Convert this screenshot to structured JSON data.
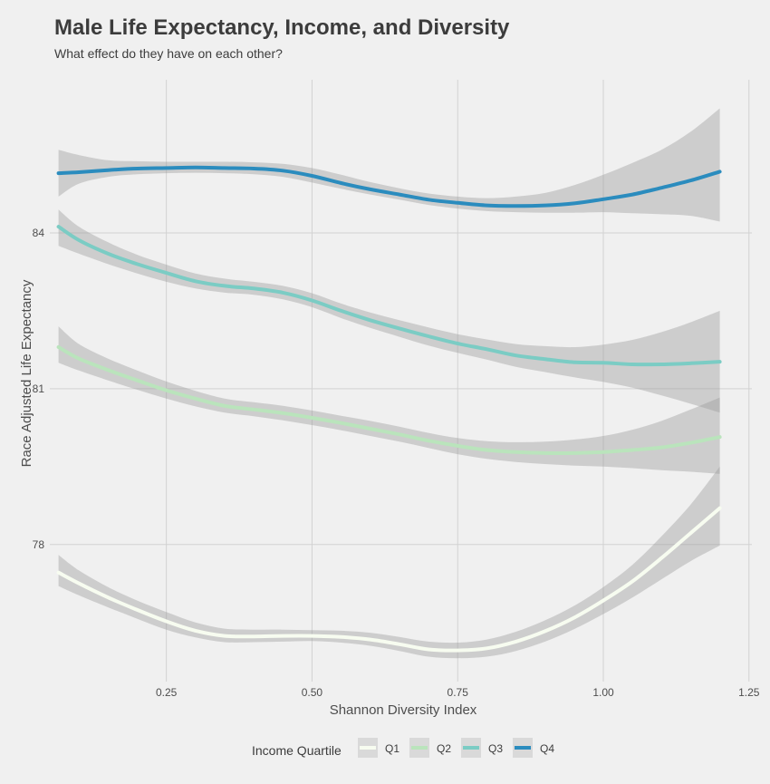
{
  "chart_data": {
    "type": "line",
    "title": "Male Life Expectancy, Income, and Diversity",
    "subtitle": "What effect do they have on each other?",
    "xlabel": "Shannon Diversity Index",
    "ylabel": "Race Adjusted Life Expectancy",
    "xlim": [
      0.05,
      1.255
    ],
    "ylim": [
      75.36,
      86.95
    ],
    "x_ticks": [
      0.25,
      0.5,
      0.75,
      1.0,
      1.25
    ],
    "x_tick_labels": [
      "0.25",
      "0.50",
      "0.75",
      "1.00",
      "1.25"
    ],
    "y_ticks": [
      78,
      81,
      84
    ],
    "y_tick_labels": [
      "78",
      "81",
      "84"
    ],
    "grid": true,
    "legend": {
      "title": "Income Quartile",
      "position": "bottom"
    },
    "series": [
      {
        "name": "Q1",
        "color": "#F7FCF0",
        "x": [
          0.065,
          0.1,
          0.15,
          0.2,
          0.25,
          0.3,
          0.35,
          0.4,
          0.45,
          0.5,
          0.55,
          0.6,
          0.65,
          0.7,
          0.75,
          0.8,
          0.85,
          0.9,
          0.95,
          1.0,
          1.05,
          1.1,
          1.15,
          1.2
        ],
        "y": [
          77.46,
          77.25,
          76.98,
          76.74,
          76.52,
          76.34,
          76.24,
          76.23,
          76.24,
          76.24,
          76.22,
          76.17,
          76.08,
          75.98,
          75.96,
          76.0,
          76.13,
          76.33,
          76.59,
          76.92,
          77.29,
          77.74,
          78.22,
          78.7
        ],
        "lower": [
          77.2,
          77.02,
          76.79,
          76.57,
          76.36,
          76.21,
          76.12,
          76.12,
          76.13,
          76.14,
          76.11,
          76.05,
          75.95,
          75.84,
          75.81,
          75.84,
          75.95,
          76.13,
          76.37,
          76.66,
          76.98,
          77.33,
          77.68,
          77.98
        ],
        "upper": [
          77.8,
          77.5,
          77.18,
          76.92,
          76.7,
          76.5,
          76.38,
          76.36,
          76.36,
          76.35,
          76.34,
          76.3,
          76.22,
          76.13,
          76.11,
          76.17,
          76.32,
          76.54,
          76.82,
          77.18,
          77.61,
          78.16,
          78.77,
          79.5
        ]
      },
      {
        "name": "Q2",
        "color": "#BAE4BC",
        "x": [
          0.065,
          0.1,
          0.15,
          0.2,
          0.25,
          0.3,
          0.35,
          0.4,
          0.45,
          0.5,
          0.55,
          0.6,
          0.65,
          0.7,
          0.75,
          0.8,
          0.85,
          0.9,
          0.95,
          1.0,
          1.05,
          1.1,
          1.15,
          1.2
        ],
        "y": [
          81.8,
          81.58,
          81.36,
          81.16,
          80.97,
          80.81,
          80.67,
          80.6,
          80.53,
          80.44,
          80.34,
          80.23,
          80.12,
          80.0,
          79.9,
          79.82,
          79.78,
          79.76,
          79.76,
          79.78,
          79.82,
          79.87,
          79.96,
          80.07
        ],
        "lower": [
          81.5,
          81.35,
          81.16,
          80.98,
          80.81,
          80.66,
          80.54,
          80.47,
          80.39,
          80.3,
          80.2,
          80.09,
          79.98,
          79.86,
          79.74,
          79.65,
          79.59,
          79.55,
          79.52,
          79.5,
          79.47,
          79.43,
          79.4,
          79.36
        ],
        "upper": [
          82.2,
          81.86,
          81.58,
          81.35,
          81.14,
          80.96,
          80.81,
          80.74,
          80.67,
          80.58,
          80.48,
          80.38,
          80.27,
          80.15,
          80.05,
          79.99,
          79.97,
          79.98,
          80.02,
          80.09,
          80.21,
          80.38,
          80.6,
          80.83
        ]
      },
      {
        "name": "Q3",
        "color": "#7BCCC4",
        "x": [
          0.065,
          0.1,
          0.15,
          0.2,
          0.25,
          0.3,
          0.35,
          0.4,
          0.45,
          0.5,
          0.55,
          0.6,
          0.65,
          0.7,
          0.75,
          0.8,
          0.85,
          0.9,
          0.95,
          1.0,
          1.05,
          1.1,
          1.15,
          1.2
        ],
        "y": [
          84.12,
          83.86,
          83.6,
          83.4,
          83.23,
          83.07,
          82.98,
          82.93,
          82.85,
          82.7,
          82.5,
          82.32,
          82.16,
          82.01,
          81.87,
          81.76,
          81.64,
          81.57,
          81.51,
          81.5,
          81.47,
          81.47,
          81.49,
          81.52
        ],
        "lower": [
          83.75,
          83.6,
          83.4,
          83.22,
          83.06,
          82.93,
          82.85,
          82.81,
          82.72,
          82.57,
          82.36,
          82.17,
          82.0,
          81.83,
          81.69,
          81.56,
          81.42,
          81.32,
          81.22,
          81.13,
          81.02,
          80.87,
          80.71,
          80.54
        ],
        "upper": [
          84.45,
          84.12,
          83.82,
          83.58,
          83.39,
          83.22,
          83.12,
          83.06,
          82.98,
          82.84,
          82.64,
          82.47,
          82.32,
          82.18,
          82.05,
          81.95,
          81.86,
          81.82,
          81.8,
          81.85,
          81.94,
          82.09,
          82.28,
          82.5
        ]
      },
      {
        "name": "Q4",
        "color": "#2B8CBE",
        "x": [
          0.065,
          0.1,
          0.15,
          0.2,
          0.25,
          0.3,
          0.35,
          0.4,
          0.45,
          0.5,
          0.55,
          0.6,
          0.65,
          0.7,
          0.75,
          0.8,
          0.85,
          0.9,
          0.95,
          1.0,
          1.05,
          1.1,
          1.15,
          1.2
        ],
        "y": [
          85.15,
          85.17,
          85.21,
          85.24,
          85.25,
          85.26,
          85.25,
          85.24,
          85.2,
          85.1,
          84.96,
          84.84,
          84.74,
          84.64,
          84.58,
          84.53,
          84.52,
          84.53,
          84.57,
          84.65,
          84.74,
          84.87,
          85.01,
          85.18
        ],
        "lower": [
          84.7,
          84.95,
          85.08,
          85.13,
          85.15,
          85.16,
          85.15,
          85.13,
          85.08,
          84.97,
          84.85,
          84.74,
          84.64,
          84.54,
          84.47,
          84.42,
          84.4,
          84.39,
          84.39,
          84.4,
          84.38,
          84.36,
          84.33,
          84.22
        ],
        "upper": [
          85.6,
          85.5,
          85.4,
          85.38,
          85.37,
          85.37,
          85.37,
          85.36,
          85.33,
          85.25,
          85.12,
          84.98,
          84.86,
          84.76,
          84.7,
          84.67,
          84.7,
          84.77,
          84.92,
          85.12,
          85.35,
          85.6,
          85.95,
          86.4
        ]
      }
    ]
  }
}
